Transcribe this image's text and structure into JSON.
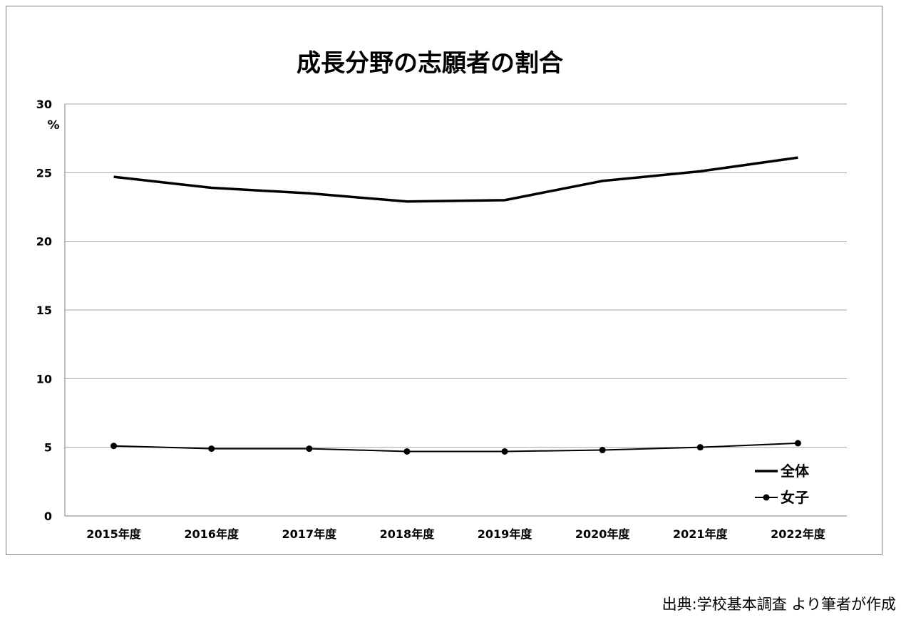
{
  "chart_data": {
    "type": "line",
    "title": "成長分野の志願者の割合",
    "ylabel": "%",
    "xlabel": "",
    "categories": [
      "2015年度",
      "2016年度",
      "2017年度",
      "2018年度",
      "2019年度",
      "2020年度",
      "2021年度",
      "2022年度"
    ],
    "ylim": [
      0,
      30
    ],
    "yticks": [
      "0",
      "5",
      "10",
      "15",
      "20",
      "25",
      "30"
    ],
    "grid": true,
    "legend_position": "bottom-right",
    "series": [
      {
        "name": "全体",
        "values": [
          24.7,
          23.9,
          23.5,
          22.9,
          23.0,
          24.4,
          25.1,
          26.1
        ],
        "marker": "none",
        "color": "#000000"
      },
      {
        "name": "女子",
        "values": [
          5.1,
          4.9,
          4.9,
          4.7,
          4.7,
          4.8,
          5.0,
          5.3
        ],
        "marker": "circle",
        "color": "#000000"
      }
    ]
  },
  "source_note": "出典:学校基本調査 より筆者が作成"
}
